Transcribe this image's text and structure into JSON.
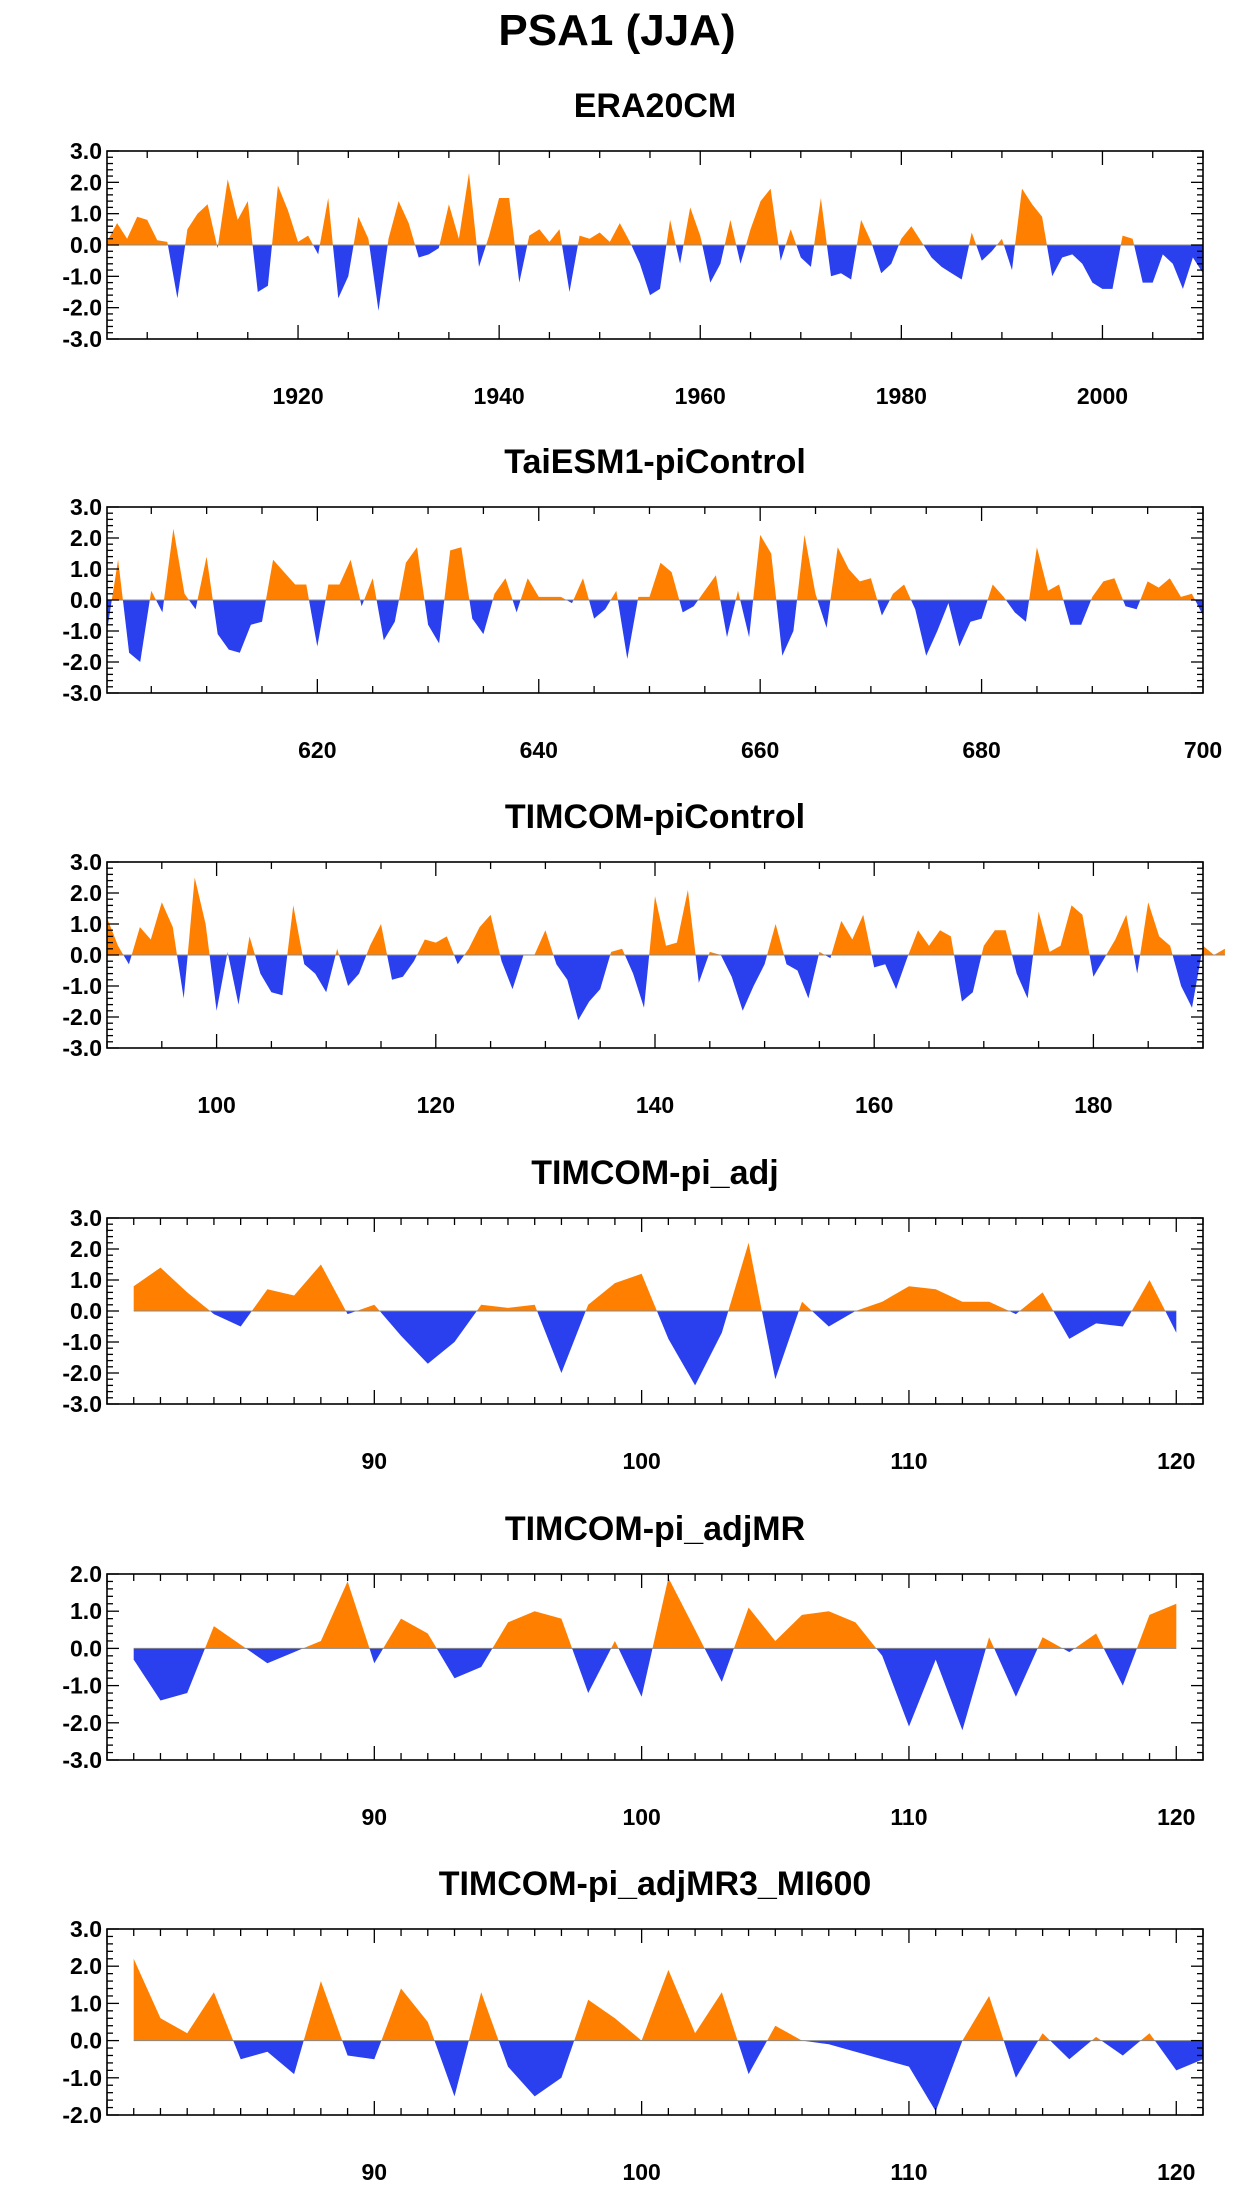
{
  "title": "PSA1 (JJA)",
  "colors": {
    "positive": "#ff8000",
    "negative": "#2a3fee"
  },
  "chart_data": [
    {
      "type": "area",
      "title": "ERA20CM",
      "xlim": [
        1901,
        2010
      ],
      "ylim": [
        -3,
        3
      ],
      "xticks": [
        "1920",
        "1940",
        "1960",
        "1980",
        "2000"
      ],
      "yticks": [
        "3.0",
        "2.0",
        "1.0",
        "0.0",
        "-1.0",
        "-2.0",
        "-3.0"
      ],
      "x_start": 1901,
      "values": [
        0.1,
        0.7,
        0.2,
        0.9,
        0.8,
        0.15,
        0.1,
        -1.7,
        0.5,
        1.0,
        1.3,
        -0.1,
        2.1,
        0.8,
        1.4,
        -1.5,
        -1.3,
        1.9,
        1.1,
        0.1,
        0.3,
        -0.3,
        1.5,
        -1.7,
        -1.0,
        0.9,
        0.2,
        -2.1,
        0.2,
        1.4,
        0.7,
        -0.4,
        -0.3,
        -0.1,
        1.3,
        0.2,
        2.3,
        -0.7,
        0.3,
        1.5,
        1.5,
        -1.2,
        0.3,
        0.5,
        0.1,
        0.5,
        -1.5,
        0.3,
        0.2,
        0.4,
        0.1,
        0.7,
        0.1,
        -0.6,
        -1.6,
        -1.4,
        0.8,
        -0.6,
        1.2,
        0.3,
        -1.2,
        -0.6,
        0.8,
        -0.6,
        0.5,
        1.4,
        1.8,
        -0.5,
        0.5,
        -0.4,
        -0.7,
        1.5,
        -1.0,
        -0.9,
        -1.1,
        0.8,
        0.1,
        -0.9,
        -0.6,
        0.2,
        0.6,
        0.1,
        -0.4,
        -0.7,
        -0.9,
        -1.1,
        0.4,
        -0.5,
        -0.2,
        0.2,
        -0.8,
        1.8,
        1.3,
        0.9,
        -1.0,
        -0.4,
        -0.3,
        -0.6,
        -1.2,
        -1.4,
        -1.4,
        0.3,
        0.2,
        -1.2,
        -1.2,
        -0.3,
        -0.6,
        -1.4,
        -0.4,
        -0.9
      ]
    },
    {
      "type": "area",
      "title": "TaiESM1-piControl",
      "xlim": [
        601,
        700
      ],
      "ylim": [
        -3,
        3
      ],
      "xticks": [
        "620",
        "640",
        "660",
        "680",
        "700"
      ],
      "yticks": [
        "3.0",
        "2.0",
        "1.0",
        "0.0",
        "-1.0",
        "-2.0",
        "-3.0"
      ],
      "x_start": 601,
      "values": [
        -1.0,
        1.3,
        -1.7,
        -2.0,
        0.3,
        -0.4,
        2.3,
        0.2,
        -0.3,
        1.4,
        -1.1,
        -1.6,
        -1.7,
        -0.8,
        -0.7,
        1.3,
        0.9,
        0.5,
        0.5,
        -1.5,
        0.5,
        0.5,
        1.3,
        -0.2,
        0.7,
        -1.3,
        -0.7,
        1.2,
        1.7,
        -0.8,
        -1.4,
        1.6,
        1.7,
        -0.6,
        -1.1,
        0.2,
        0.7,
        -0.4,
        0.7,
        0.1,
        0.1,
        0.1,
        -0.1,
        0.7,
        -0.6,
        -0.3,
        0.3,
        -1.9,
        0.1,
        0.1,
        1.2,
        0.9,
        -0.4,
        -0.2,
        0.3,
        0.8,
        -1.2,
        0.3,
        -1.2,
        2.1,
        1.5,
        -1.8,
        -1.0,
        2.1,
        0.2,
        -0.9,
        1.7,
        1.0,
        0.6,
        0.7,
        -0.5,
        0.2,
        0.5,
        -0.3,
        -1.8,
        -1.0,
        -0.1,
        -1.5,
        -0.7,
        -0.6,
        0.5,
        0.1,
        -0.4,
        -0.7,
        1.7,
        0.3,
        0.5,
        -0.8,
        -0.8,
        0.1,
        0.6,
        0.7,
        -0.2,
        -0.3,
        0.6,
        0.4,
        0.7,
        0.1,
        0.2,
        -0.5
      ]
    },
    {
      "type": "area",
      "title": "TIMCOM-piControl",
      "xlim": [
        90,
        190
      ],
      "ylim": [
        -3,
        3
      ],
      "xticks": [
        "100",
        "120",
        "140",
        "160",
        "180"
      ],
      "yticks": [
        "3.0",
        "2.0",
        "1.0",
        "0.0",
        "-1.0",
        "-2.0",
        "-3.0"
      ],
      "x_start": 90,
      "values": [
        1.2,
        0.3,
        -0.3,
        0.9,
        0.5,
        1.7,
        0.9,
        -1.4,
        2.5,
        1.0,
        -1.8,
        0.1,
        -1.6,
        0.6,
        -0.6,
        -1.2,
        -1.3,
        1.6,
        -0.3,
        -0.6,
        -1.2,
        0.2,
        -1.0,
        -0.6,
        0.3,
        1.0,
        -0.8,
        -0.7,
        -0.2,
        0.5,
        0.4,
        0.6,
        -0.3,
        0.2,
        0.9,
        1.3,
        -0.2,
        -1.1,
        0.0,
        0.0,
        0.8,
        -0.3,
        -0.8,
        -2.1,
        -1.5,
        -1.1,
        0.1,
        0.2,
        -0.6,
        -1.7,
        1.9,
        0.3,
        0.4,
        2.1,
        -0.9,
        0.1,
        0.0,
        -0.7,
        -1.8,
        -1.0,
        -0.3,
        1.0,
        -0.3,
        -0.5,
        -1.4,
        0.1,
        -0.1,
        1.1,
        0.5,
        1.3,
        -0.4,
        -0.3,
        -1.1,
        -0.1,
        0.8,
        0.3,
        0.8,
        0.6,
        -1.5,
        -1.2,
        0.3,
        0.8,
        0.8,
        -0.6,
        -1.4,
        1.4,
        0.1,
        0.3,
        1.6,
        1.3,
        -0.7,
        -0.1,
        0.5,
        1.3,
        -0.6,
        1.7,
        0.6,
        0.3,
        -1.0,
        -1.7,
        0.3,
        0.0,
        0.2
      ]
    },
    {
      "type": "area",
      "title": "TIMCOM-pi_adj",
      "xlim": [
        80,
        121
      ],
      "ylim": [
        -3,
        3
      ],
      "xticks": [
        "90",
        "100",
        "110",
        "120"
      ],
      "yticks": [
        "3.0",
        "2.0",
        "1.0",
        "0.0",
        "-1.0",
        "-2.0",
        "-3.0"
      ],
      "x_start": 81,
      "values": [
        0.8,
        1.4,
        0.6,
        -0.1,
        -0.5,
        0.7,
        0.5,
        1.5,
        -0.1,
        0.2,
        -0.8,
        -1.7,
        -1.0,
        0.2,
        0.1,
        0.2,
        -2.0,
        0.2,
        0.9,
        1.2,
        -0.9,
        -2.4,
        -0.7,
        2.2,
        -2.2,
        0.3,
        -0.5,
        0.0,
        0.3,
        0.8,
        0.7,
        0.3,
        0.3,
        -0.1,
        0.6,
        -0.9,
        -0.4,
        -0.5,
        1.0,
        -0.7
      ]
    },
    {
      "type": "area",
      "title": "TIMCOM-pi_adjMR",
      "xlim": [
        80,
        121
      ],
      "ylim": [
        -3,
        2
      ],
      "xticks": [
        "90",
        "100",
        "110",
        "120"
      ],
      "yticks": [
        "2.0",
        "1.0",
        "0.0",
        "-1.0",
        "-2.0",
        "-3.0"
      ],
      "x_start": 81,
      "values": [
        -0.3,
        -1.4,
        -1.2,
        0.6,
        0.1,
        -0.4,
        -0.1,
        0.2,
        1.8,
        -0.4,
        0.8,
        0.4,
        -0.8,
        -0.5,
        0.7,
        1.0,
        0.8,
        -1.2,
        0.2,
        -1.3,
        1.9,
        0.5,
        -0.9,
        1.1,
        0.2,
        0.9,
        1.0,
        0.7,
        -0.2,
        -2.1,
        -0.3,
        -2.2,
        0.3,
        -1.3,
        0.3,
        -0.1,
        0.4,
        -1.0,
        0.9,
        1.2
      ]
    },
    {
      "type": "area",
      "title": "TIMCOM-pi_adjMR3_MI600",
      "xlim": [
        80,
        121
      ],
      "ylim": [
        -2,
        3
      ],
      "xticks": [
        "90",
        "100",
        "110",
        "120"
      ],
      "yticks": [
        "3.0",
        "2.0",
        "1.0",
        "0.0",
        "-1.0",
        "-2.0"
      ],
      "x_start": 81,
      "values": [
        2.2,
        0.6,
        0.2,
        1.3,
        -0.5,
        -0.3,
        -0.9,
        1.6,
        -0.4,
        -0.5,
        1.4,
        0.5,
        -1.5,
        1.3,
        -0.7,
        -1.5,
        -1.0,
        1.1,
        0.6,
        0.0,
        1.9,
        0.2,
        1.3,
        -0.9,
        0.4,
        0.0,
        -0.1,
        -0.3,
        -0.5,
        -0.7,
        -1.9,
        0.0,
        1.2,
        -1.0,
        0.2,
        -0.5,
        0.1,
        -0.4,
        0.2,
        -0.8,
        -0.5
      ]
    }
  ]
}
